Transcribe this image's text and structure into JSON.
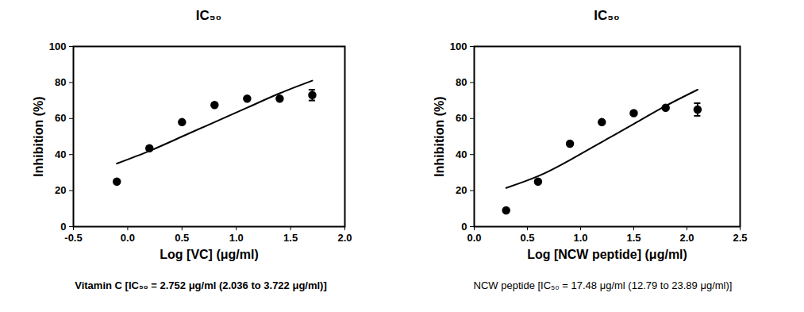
{
  "chart_data": [
    {
      "type": "scatter",
      "title": "IC₅₀",
      "x_label": "Log [VC] (μg/ml)",
      "y_label": "Inhibition (%)",
      "caption": "Vitamin C [IC₅₀ = 2.752 μg/ml (2.036 to 3.722 μg/ml)]",
      "xlim": [
        -0.5,
        2.0
      ],
      "xticks": [
        -0.5,
        {
          "value": 0,
          "label": "0.0"
        },
        0.5,
        {
          "value": 1,
          "label": "1.0"
        },
        1.5,
        {
          "value": 2,
          "label": "2.0"
        }
      ],
      "ylim": [
        0,
        100
      ],
      "yticks": [
        0,
        20,
        40,
        60,
        80,
        100
      ],
      "grid": false,
      "series": [
        {
          "type": "scatter",
          "marker": "circle",
          "color": "#000000",
          "x": [
            -0.1,
            0.2,
            0.5,
            0.8,
            1.1,
            1.4,
            1.7
          ],
          "values": [
            25,
            43.5,
            58,
            67.5,
            71,
            71,
            73
          ],
          "error": [
            null,
            null,
            null,
            null,
            null,
            null,
            3
          ]
        },
        {
          "type": "line",
          "line_style": "solid",
          "color": "#000000",
          "x": [
            -0.1,
            0.2,
            0.5,
            0.8,
            1.1,
            1.4,
            1.7
          ],
          "values": [
            35,
            42,
            50,
            58,
            66,
            74,
            81
          ]
        }
      ]
    },
    {
      "type": "scatter",
      "title": "IC₅₀",
      "x_label": "Log [NCW peptide] (μg/ml)",
      "y_label": "Inhibition (%)",
      "caption": "NCW peptide [IC₅₀ = 17.48 μg/ml (12.79 to 23.89 μg/ml)]",
      "xlim": [
        0,
        2.5
      ],
      "xticks": [
        {
          "value": 0,
          "label": "0.0"
        },
        0.5,
        {
          "value": 1,
          "label": "1.0"
        },
        1.5,
        {
          "value": 2,
          "label": "2.0"
        },
        2.5
      ],
      "ylim": [
        0,
        100
      ],
      "yticks": [
        0,
        20,
        40,
        60,
        80,
        100
      ],
      "grid": false,
      "series": [
        {
          "type": "scatter",
          "marker": "circle",
          "color": "#000000",
          "x": [
            0.3,
            0.6,
            0.9,
            1.2,
            1.5,
            1.8,
            2.1
          ],
          "values": [
            9,
            25,
            46,
            58,
            63,
            66,
            65
          ],
          "error": [
            null,
            null,
            null,
            null,
            null,
            null,
            3.5
          ]
        },
        {
          "type": "line",
          "line_style": "solid",
          "color": "#000000",
          "x": [
            0.3,
            0.6,
            0.9,
            1.2,
            1.5,
            1.8,
            2.1
          ],
          "values": [
            21.5,
            28,
            37,
            47,
            57,
            67,
            76
          ]
        }
      ]
    }
  ]
}
